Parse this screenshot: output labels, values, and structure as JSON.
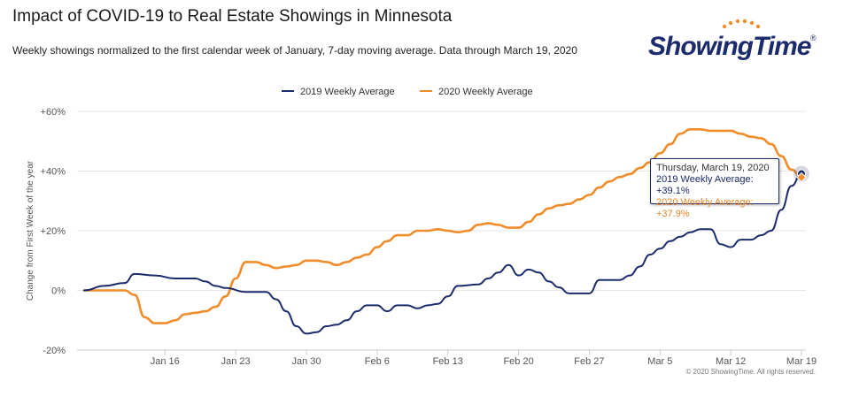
{
  "header": {
    "title": "Impact of COVID-19 to Real Estate Showings in Minnesota",
    "subtitle": "Weekly showings normalized to the first calendar week of January, 7-day moving average. Data through March 19, 2020"
  },
  "logo": {
    "text": "ShowingTime",
    "registered": "®"
  },
  "tooltip": {
    "date": "Thursday, March 19, 2020",
    "line_2019": "2019 Weekly Average: +39.1%",
    "line_2020": "2020 Weekly Average: +37.9%"
  },
  "footer": {
    "copyright": "© 2020 ShowingTime. All rights reserved."
  },
  "colors": {
    "s2019": "#1c2b6b",
    "s2020": "#f08c2a",
    "grid": "#e6e6e6",
    "axis": "#cccccc"
  },
  "chart_data": {
    "type": "line",
    "title": "Impact of COVID-19 to Real Estate Showings in Minnesota",
    "ylabel": "Change from First Week of the year",
    "xlabel": "",
    "ylim": [
      -20,
      60
    ],
    "yticks": [
      -20,
      0,
      20,
      40,
      60
    ],
    "ytick_labels": [
      "-20%",
      "0%",
      "+20%",
      "+40%",
      "+60%"
    ],
    "x_start": "2020-01-08",
    "x_end": "2020-03-19",
    "xticks": [
      "2020-01-16",
      "2020-01-23",
      "2020-01-30",
      "2020-02-06",
      "2020-02-13",
      "2020-02-20",
      "2020-02-27",
      "2020-03-05",
      "2020-03-12",
      "2020-03-19"
    ],
    "xtick_labels": [
      "Jan 16",
      "Jan 23",
      "Jan 30",
      "Feb 6",
      "Feb 13",
      "Feb 20",
      "Feb 27",
      "Mar 5",
      "Mar 12",
      "Mar 19"
    ],
    "grid": true,
    "legend_position": "top-center",
    "series": [
      {
        "name": "2019 Weekly Average",
        "color": "#1c2b6b",
        "points": [
          [
            "2020-01-08",
            0
          ],
          [
            "2020-01-10",
            1.5
          ],
          [
            "2020-01-12",
            2.5
          ],
          [
            "2020-01-13",
            5.5
          ],
          [
            "2020-01-15",
            5
          ],
          [
            "2020-01-17",
            4
          ],
          [
            "2020-01-19",
            4
          ],
          [
            "2020-01-20",
            3
          ],
          [
            "2020-01-21",
            1.5
          ],
          [
            "2020-01-22",
            0.8
          ],
          [
            "2020-01-24",
            -0.5
          ],
          [
            "2020-01-26",
            -0.5
          ],
          [
            "2020-01-27",
            -3
          ],
          [
            "2020-01-28",
            -7
          ],
          [
            "2020-01-29",
            -12
          ],
          [
            "2020-01-30",
            -14.5
          ],
          [
            "2020-01-31",
            -14
          ],
          [
            "2020-02-01",
            -12
          ],
          [
            "2020-02-02",
            -11.5
          ],
          [
            "2020-02-03",
            -10
          ],
          [
            "2020-02-04",
            -7
          ],
          [
            "2020-02-05",
            -5
          ],
          [
            "2020-02-06",
            -5
          ],
          [
            "2020-02-07",
            -7
          ],
          [
            "2020-02-08",
            -5
          ],
          [
            "2020-02-09",
            -5
          ],
          [
            "2020-02-10",
            -6
          ],
          [
            "2020-02-11",
            -5
          ],
          [
            "2020-02-12",
            -4.5
          ],
          [
            "2020-02-13",
            -2
          ],
          [
            "2020-02-14",
            1.5
          ],
          [
            "2020-02-16",
            2
          ],
          [
            "2020-02-17",
            4
          ],
          [
            "2020-02-18",
            6
          ],
          [
            "2020-02-19",
            8.5
          ],
          [
            "2020-02-20",
            5
          ],
          [
            "2020-02-21",
            7
          ],
          [
            "2020-02-22",
            6
          ],
          [
            "2020-02-23",
            3
          ],
          [
            "2020-02-24",
            1
          ],
          [
            "2020-02-25",
            -1
          ],
          [
            "2020-02-26",
            -1
          ],
          [
            "2020-02-27",
            -1
          ],
          [
            "2020-02-28",
            3.5
          ],
          [
            "2020-03-01",
            3.5
          ],
          [
            "2020-03-02",
            5
          ],
          [
            "2020-03-03",
            8
          ],
          [
            "2020-03-04",
            12
          ],
          [
            "2020-03-05",
            14
          ],
          [
            "2020-03-06",
            16.5
          ],
          [
            "2020-03-07",
            18
          ],
          [
            "2020-03-08",
            19.5
          ],
          [
            "2020-03-09",
            20.5
          ],
          [
            "2020-03-10",
            20.5
          ],
          [
            "2020-03-11",
            15.5
          ],
          [
            "2020-03-12",
            14.5
          ],
          [
            "2020-03-13",
            17
          ],
          [
            "2020-03-14",
            17
          ],
          [
            "2020-03-15",
            18.5
          ],
          [
            "2020-03-16",
            20
          ],
          [
            "2020-03-17",
            27
          ],
          [
            "2020-03-18",
            35
          ],
          [
            "2020-03-19",
            39.1
          ]
        ]
      },
      {
        "name": "2020 Weekly Average",
        "color": "#f08c2a",
        "points": [
          [
            "2020-01-08",
            0
          ],
          [
            "2020-01-10",
            0
          ],
          [
            "2020-01-12",
            0
          ],
          [
            "2020-01-13",
            -1.5
          ],
          [
            "2020-01-14",
            -9
          ],
          [
            "2020-01-15",
            -11
          ],
          [
            "2020-01-16",
            -11
          ],
          [
            "2020-01-17",
            -10
          ],
          [
            "2020-01-18",
            -8
          ],
          [
            "2020-01-19",
            -7.5
          ],
          [
            "2020-01-20",
            -7
          ],
          [
            "2020-01-21",
            -5.5
          ],
          [
            "2020-01-22",
            -2
          ],
          [
            "2020-01-23",
            4
          ],
          [
            "2020-01-24",
            9.5
          ],
          [
            "2020-01-25",
            9.5
          ],
          [
            "2020-01-26",
            8.5
          ],
          [
            "2020-01-27",
            7.5
          ],
          [
            "2020-01-28",
            8
          ],
          [
            "2020-01-29",
            8.5
          ],
          [
            "2020-01-30",
            10
          ],
          [
            "2020-01-31",
            10
          ],
          [
            "2020-02-01",
            9.5
          ],
          [
            "2020-02-02",
            8.5
          ],
          [
            "2020-02-03",
            9.5
          ],
          [
            "2020-02-04",
            11
          ],
          [
            "2020-02-05",
            12
          ],
          [
            "2020-02-06",
            14.5
          ],
          [
            "2020-02-07",
            16.5
          ],
          [
            "2020-02-08",
            18.5
          ],
          [
            "2020-02-09",
            18.5
          ],
          [
            "2020-02-10",
            20
          ],
          [
            "2020-02-11",
            20
          ],
          [
            "2020-02-12",
            20.5
          ],
          [
            "2020-02-13",
            20
          ],
          [
            "2020-02-14",
            19.5
          ],
          [
            "2020-02-15",
            20
          ],
          [
            "2020-02-16",
            22
          ],
          [
            "2020-02-17",
            22.5
          ],
          [
            "2020-02-18",
            22
          ],
          [
            "2020-02-19",
            21
          ],
          [
            "2020-02-20",
            21
          ],
          [
            "2020-02-21",
            23
          ],
          [
            "2020-02-22",
            25.5
          ],
          [
            "2020-02-23",
            27.5
          ],
          [
            "2020-02-24",
            28.5
          ],
          [
            "2020-02-25",
            29
          ],
          [
            "2020-02-26",
            30.5
          ],
          [
            "2020-02-27",
            32
          ],
          [
            "2020-02-28",
            34.5
          ],
          [
            "2020-02-29",
            36.5
          ],
          [
            "2020-03-01",
            38
          ],
          [
            "2020-03-02",
            39
          ],
          [
            "2020-03-03",
            41
          ],
          [
            "2020-03-04",
            43
          ],
          [
            "2020-03-05",
            46
          ],
          [
            "2020-03-06",
            49
          ],
          [
            "2020-03-07",
            52.5
          ],
          [
            "2020-03-08",
            54
          ],
          [
            "2020-03-09",
            54
          ],
          [
            "2020-03-10",
            53.5
          ],
          [
            "2020-03-11",
            53.5
          ],
          [
            "2020-03-12",
            53.5
          ],
          [
            "2020-03-13",
            52.5
          ],
          [
            "2020-03-14",
            51.5
          ],
          [
            "2020-03-15",
            51
          ],
          [
            "2020-03-16",
            49
          ],
          [
            "2020-03-17",
            45
          ],
          [
            "2020-03-18",
            40.5
          ],
          [
            "2020-03-19",
            37.9
          ]
        ]
      }
    ]
  }
}
